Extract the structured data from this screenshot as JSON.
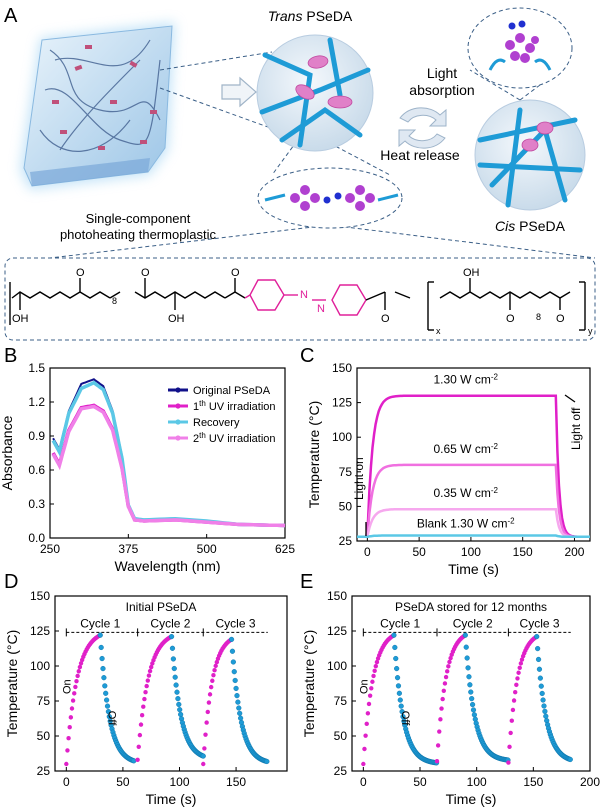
{
  "panels": {
    "A": {
      "letter": "A",
      "left_caption_1": "Single-component",
      "left_caption_2": "photoheating thermoplastic",
      "trans_label_italic": "Trans",
      "trans_label_rest": " PSeDA",
      "cis_label_italic": "Cis",
      "cis_label_rest": " PSeDA",
      "light_1": "Light",
      "light_2": "absorption",
      "heat": "Heat release",
      "formula": {
        "O": "O",
        "OH": "OH",
        "N": "N",
        "sub8": "8",
        "subx": "x",
        "suby": "y"
      }
    },
    "B": {
      "letter": "B"
    },
    "C": {
      "letter": "C"
    },
    "D": {
      "letter": "D"
    },
    "E": {
      "letter": "E"
    }
  },
  "colors": {
    "magenta": "#e020c8",
    "pink": "#f080e8",
    "blue": "#1e9bd6",
    "lightblue": "#5bc8e6",
    "navy": "#10108a",
    "azo": "#e0209a"
  },
  "chart_data": [
    {
      "panel": "B",
      "type": "line",
      "xlabel": "Wavelength (nm)",
      "ylabel": "Absorbance",
      "xlim": [
        250,
        625
      ],
      "ylim": [
        0,
        1.5
      ],
      "xticks": [
        250,
        375,
        500,
        625
      ],
      "yticks": [
        0.0,
        0.3,
        0.6,
        0.9,
        1.2,
        1.5
      ],
      "legend_position": "top-right",
      "series": [
        {
          "name": "Original PSeDA",
          "color": "#10108a",
          "x": [
            255,
            265,
            280,
            300,
            320,
            335,
            350,
            365,
            375,
            385,
            400,
            450,
            500,
            550,
            625
          ],
          "y": [
            0.88,
            0.78,
            1.12,
            1.36,
            1.4,
            1.34,
            1.12,
            0.72,
            0.3,
            0.17,
            0.16,
            0.17,
            0.15,
            0.12,
            0.11
          ]
        },
        {
          "name": "1th UV irradiation",
          "color": "#e020c8",
          "x": [
            255,
            265,
            280,
            300,
            320,
            335,
            350,
            365,
            375,
            385,
            400,
            450,
            500,
            550,
            625
          ],
          "y": [
            0.75,
            0.65,
            0.95,
            1.15,
            1.17,
            1.12,
            0.96,
            0.62,
            0.28,
            0.16,
            0.15,
            0.16,
            0.14,
            0.12,
            0.11
          ]
        },
        {
          "name": "Recovery",
          "color": "#5bc8e6",
          "x": [
            255,
            265,
            280,
            300,
            320,
            335,
            350,
            365,
            375,
            385,
            400,
            450,
            500,
            550,
            625
          ],
          "y": [
            0.86,
            0.76,
            1.1,
            1.32,
            1.37,
            1.31,
            1.1,
            0.7,
            0.29,
            0.17,
            0.16,
            0.17,
            0.15,
            0.12,
            0.11
          ]
        },
        {
          "name": "2th UV irradiation",
          "color": "#f080e8",
          "x": [
            255,
            265,
            280,
            300,
            320,
            335,
            350,
            365,
            375,
            385,
            400,
            450,
            500,
            550,
            625
          ],
          "y": [
            0.74,
            0.64,
            0.94,
            1.14,
            1.16,
            1.11,
            0.95,
            0.61,
            0.28,
            0.16,
            0.15,
            0.16,
            0.14,
            0.12,
            0.11
          ]
        }
      ]
    },
    {
      "panel": "C",
      "type": "line",
      "xlabel": "Time (s)",
      "ylabel": "Temperature (°C)",
      "xlim": [
        -10,
        215
      ],
      "ylim": [
        25,
        150
      ],
      "xticks": [
        0,
        50,
        100,
        150,
        200
      ],
      "yticks": [
        25,
        50,
        75,
        100,
        125,
        150
      ],
      "annotations": [
        "Light on",
        "Light off"
      ],
      "series": [
        {
          "name": "1.30 W cm",
          "color": "#e020c8",
          "on": 0,
          "off": 182,
          "base": 28,
          "plateau": 130,
          "label": "1.30 W cm",
          "sup": "-2"
        },
        {
          "name": "0.65 W cm",
          "color": "#f070e0",
          "on": 0,
          "off": 182,
          "base": 28,
          "plateau": 80,
          "label": "0.65 W cm",
          "sup": "-2"
        },
        {
          "name": "0.35 W cm",
          "color": "#f6a8ee",
          "on": 0,
          "off": 182,
          "base": 28,
          "plateau": 48,
          "label": "0.35 W cm",
          "sup": "-2"
        },
        {
          "name": "Blank 1.30 W cm",
          "color": "#5bc8e6",
          "on": 0,
          "off": 182,
          "base": 28,
          "plateau": 29,
          "label": "Blank 1.30 W cm",
          "sup": "-2"
        }
      ]
    },
    {
      "panel": "D",
      "type": "scatter",
      "title": "Initial PSeDA",
      "xlabel": "Time (s)",
      "ylabel": "Temperature (°C)",
      "xlim": [
        -10,
        195
      ],
      "ylim": [
        25,
        150
      ],
      "xticks": [
        0,
        50,
        100,
        150
      ],
      "yticks": [
        25,
        50,
        75,
        100,
        125,
        150
      ],
      "cycles": [
        "Cycle 1",
        "Cycle 2",
        "Cycle 3"
      ],
      "on_label": "On",
      "off_label": "Off",
      "heat_color": "#e020c8",
      "cool_color": "#1e9bd6",
      "cycle_data": [
        {
          "start": 0,
          "peak_t": 30,
          "end": 60,
          "base": 30,
          "peak": 122
        },
        {
          "start": 63,
          "peak_t": 93,
          "end": 121,
          "base": 33,
          "peak": 121
        },
        {
          "start": 121,
          "peak_t": 146,
          "end": 178,
          "base": 30,
          "peak": 119
        }
      ]
    },
    {
      "panel": "E",
      "type": "scatter",
      "title": "PSeDA stored for 12 months",
      "xlabel": "Time (s)",
      "ylabel": "Temperature (°C)",
      "xlim": [
        -10,
        200
      ],
      "ylim": [
        25,
        150
      ],
      "xticks": [
        0,
        50,
        100,
        150,
        200
      ],
      "yticks": [
        25,
        50,
        75,
        100,
        125,
        150
      ],
      "cycles": [
        "Cycle 1",
        "Cycle 2",
        "Cycle 3"
      ],
      "on_label": "On",
      "off_label": "Off",
      "heat_color": "#e020c8",
      "cool_color": "#1e9bd6",
      "cycle_data": [
        {
          "start": 0,
          "peak_t": 27,
          "end": 65,
          "base": 30,
          "peak": 122
        },
        {
          "start": 65,
          "peak_t": 90,
          "end": 128,
          "base": 32,
          "peak": 122
        },
        {
          "start": 128,
          "peak_t": 153,
          "end": 183,
          "base": 31,
          "peak": 121
        }
      ]
    }
  ]
}
